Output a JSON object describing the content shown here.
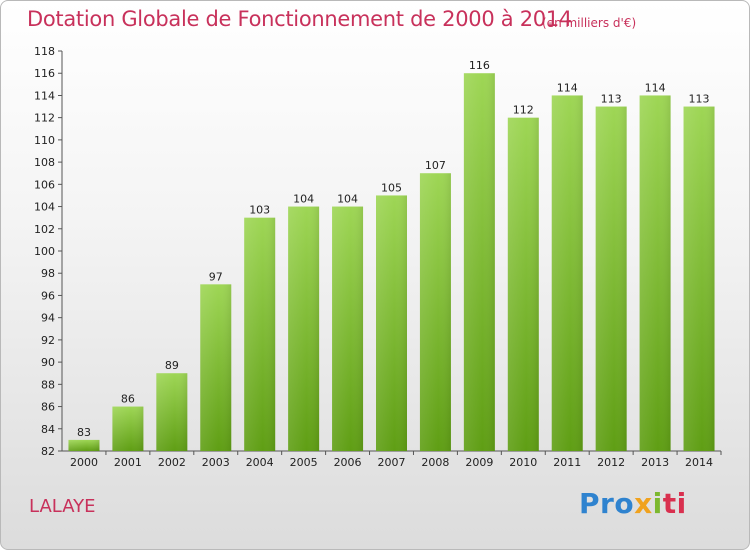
{
  "header": {
    "title": "Dotation Globale de Fonctionnement de 2000 à 2014",
    "unit": "(en milliers d'€)"
  },
  "footer": {
    "commune": "LALAYE",
    "logo": [
      "Pro",
      "x",
      "i",
      "ti"
    ]
  },
  "colors": {
    "bar_top": "#9ed655",
    "bar_bottom": "#5f9e14",
    "text_accent": "#c8315b"
  },
  "chart_data": {
    "type": "bar",
    "title": "Dotation Globale de Fonctionnement de 2000 à 2014",
    "subtitle": "(en milliers d'€)",
    "categories": [
      "2000",
      "2001",
      "2002",
      "2003",
      "2004",
      "2005",
      "2006",
      "2007",
      "2008",
      "2009",
      "2010",
      "2011",
      "2012",
      "2013",
      "2014"
    ],
    "values": [
      83,
      86,
      89,
      97,
      103,
      104,
      104,
      105,
      107,
      116,
      112,
      114,
      113,
      114,
      113
    ],
    "ylim": [
      82,
      118
    ],
    "yticks": [
      82,
      84,
      86,
      88,
      90,
      92,
      94,
      96,
      98,
      100,
      102,
      104,
      106,
      108,
      110,
      112,
      114,
      116,
      118
    ],
    "grid": false,
    "legend": "none"
  }
}
